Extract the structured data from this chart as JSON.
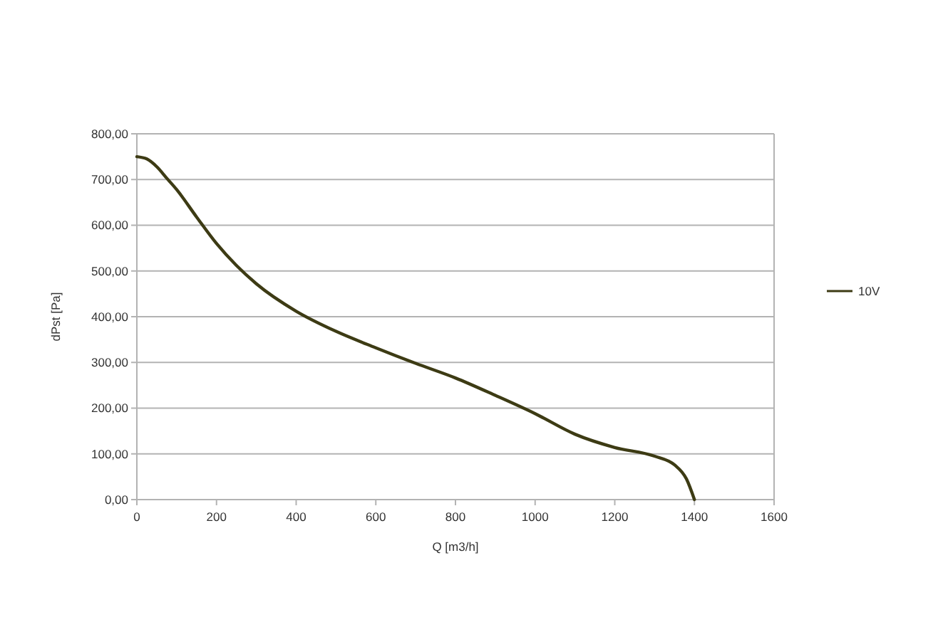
{
  "chart_data": {
    "type": "line",
    "xlabel": "Q [m3/h]",
    "ylabel": "dPst [Pa]",
    "x": [
      0,
      25,
      50,
      75,
      100,
      150,
      200,
      250,
      300,
      400,
      500,
      600,
      700,
      800,
      900,
      1000,
      1100,
      1200,
      1300,
      1350,
      1380,
      1400
    ],
    "series": [
      {
        "name": "10V",
        "color": "#3d3b14",
        "values": [
          750,
          745,
          728,
          703,
          678,
          618,
          560,
          512,
          472,
          412,
          368,
          332,
          298,
          266,
          228,
          188,
          143,
          114,
          95,
          76,
          45,
          0
        ]
      }
    ],
    "xlim": [
      0,
      1600
    ],
    "xticks": [
      0,
      200,
      400,
      600,
      800,
      1000,
      1200,
      1400,
      1600
    ],
    "ylim": [
      0,
      800
    ],
    "yticks": [
      {
        "value": 0,
        "label": "0,00"
      },
      {
        "value": 100,
        "label": "100,00"
      },
      {
        "value": 200,
        "label": "200,00"
      },
      {
        "value": 300,
        "label": "300,00"
      },
      {
        "value": 400,
        "label": "400,00"
      },
      {
        "value": 500,
        "label": "500,00"
      },
      {
        "value": 600,
        "label": "600,00"
      },
      {
        "value": 700,
        "label": "700,00"
      },
      {
        "value": 800,
        "label": "800,00"
      }
    ],
    "grid": "y",
    "legend": "right",
    "marker": "none",
    "line_style": "solid"
  }
}
